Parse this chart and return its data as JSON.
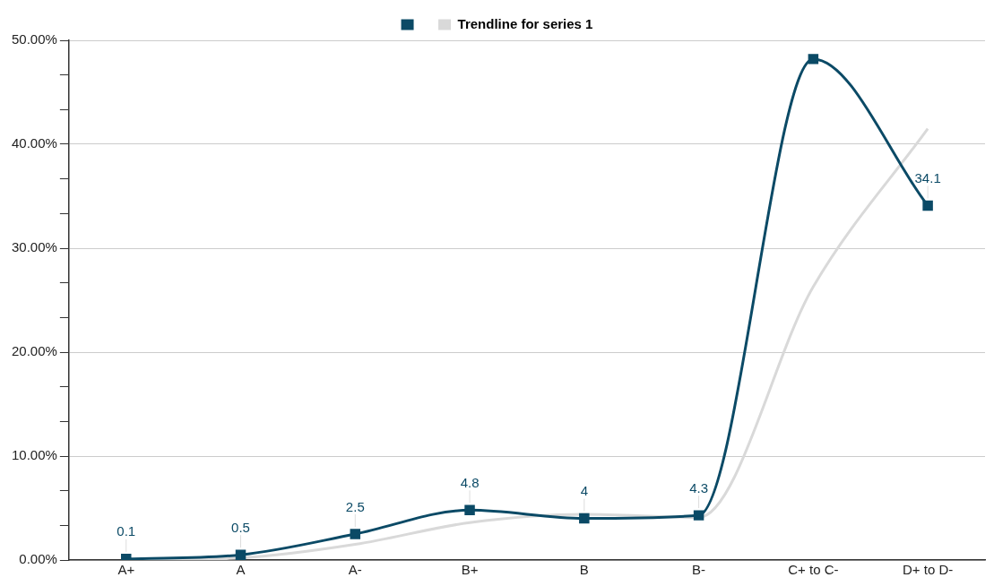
{
  "chart_data": {
    "type": "line",
    "categories": [
      "A+",
      "A",
      "A-",
      "B+",
      "B",
      "B-",
      "C+ to C-",
      "D+ to D-"
    ],
    "series": [
      {
        "color": "#0b4a66",
        "values": [
          0.1,
          0.5,
          2.5,
          4.8,
          4,
          4.3,
          48.2,
          34.1
        ],
        "value_labels": [
          "0.1",
          "0.5",
          "2.5",
          "4.8",
          "4",
          "4.3",
          null,
          "34.1"
        ],
        "marker": "square"
      },
      {
        "name": "Trendline for series 1",
        "color": "#d9d9d9",
        "values": [
          0,
          0.2,
          1.5,
          3.6,
          4.4,
          4.1,
          26.3,
          41.5
        ],
        "marker": "none"
      }
    ],
    "ylim": [
      0,
      50
    ],
    "yticks": [
      {
        "value": 0,
        "label": "0.00%"
      },
      {
        "value": 3.33,
        "label": null
      },
      {
        "value": 6.67,
        "label": null
      },
      {
        "value": 10,
        "label": "10.00%"
      },
      {
        "value": 13.33,
        "label": null
      },
      {
        "value": 16.67,
        "label": null
      },
      {
        "value": 20,
        "label": "20.00%"
      },
      {
        "value": 23.33,
        "label": null
      },
      {
        "value": 26.67,
        "label": null
      },
      {
        "value": 30,
        "label": "30.00%"
      },
      {
        "value": 33.33,
        "label": null
      },
      {
        "value": 36.67,
        "label": null
      },
      {
        "value": 40,
        "label": "40.00%"
      },
      {
        "value": 43.33,
        "label": null
      },
      {
        "value": 46.67,
        "label": null
      },
      {
        "value": 50,
        "label": "50.00%"
      }
    ],
    "grid": "y",
    "legend": "top"
  }
}
